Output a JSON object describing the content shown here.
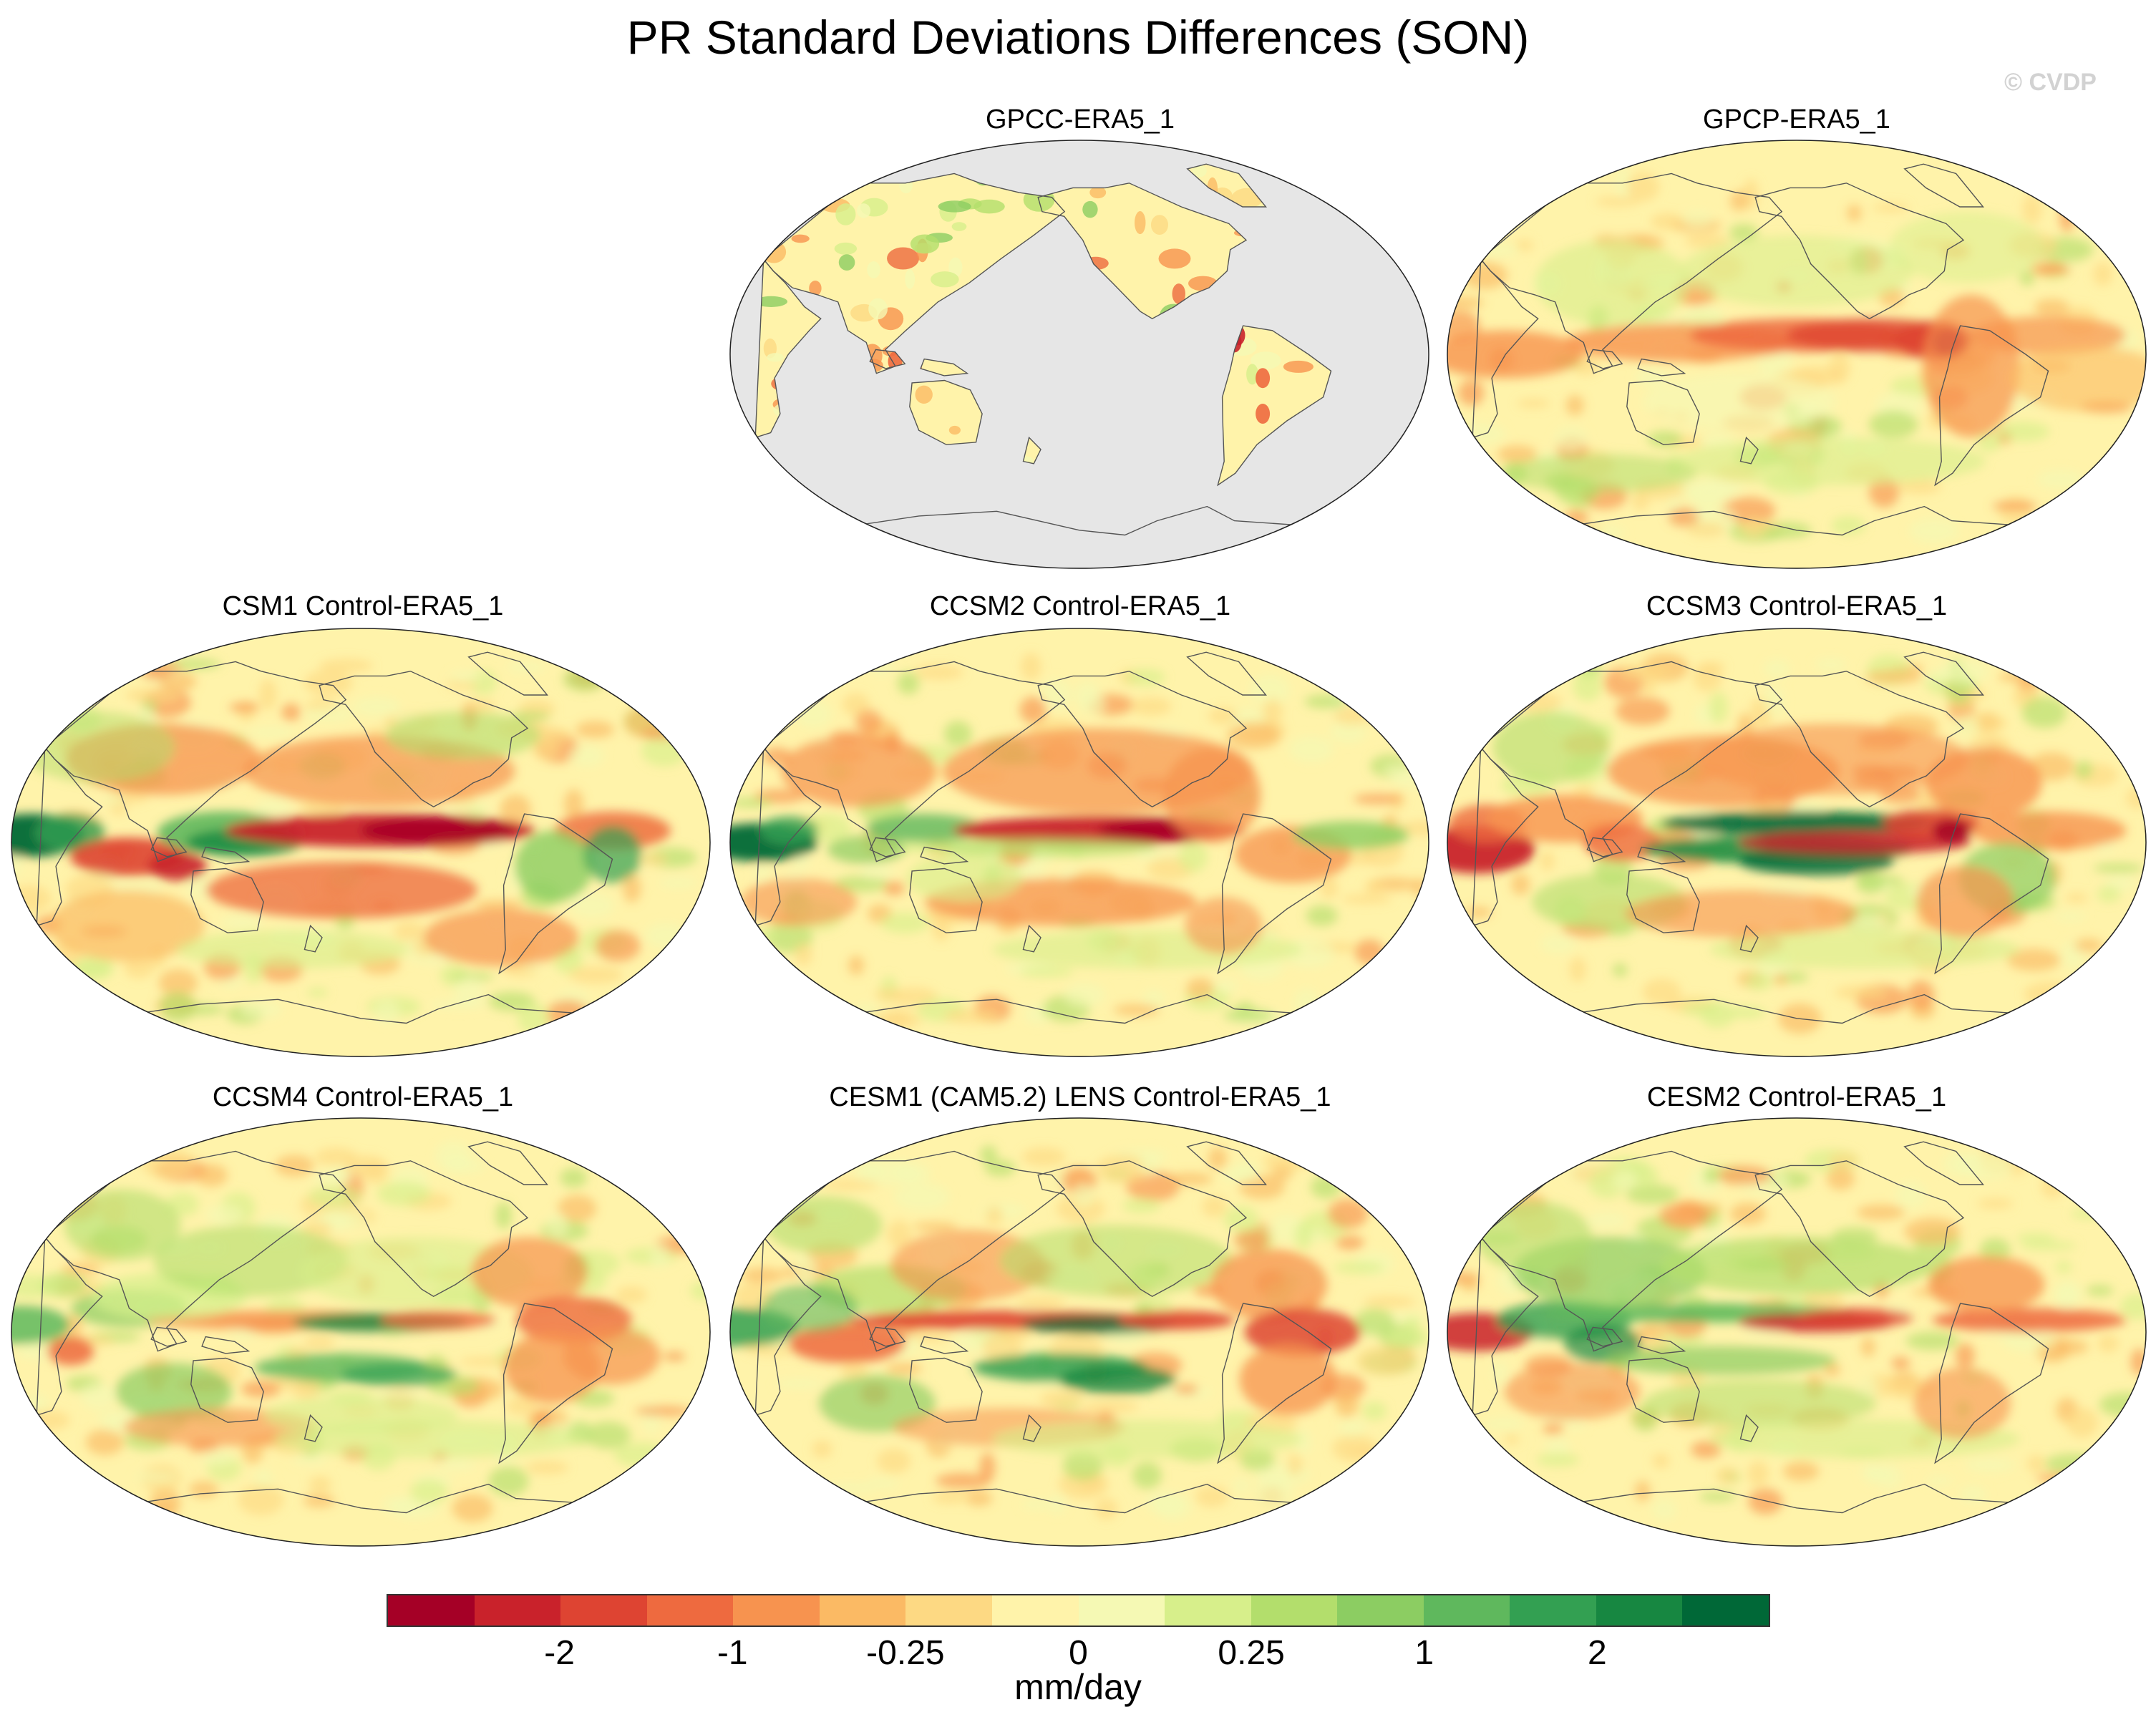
{
  "title": "PR Standard Deviations Differences (SON)",
  "watermark": "© CVDP",
  "panels": [
    {
      "title": "GPCC-ERA5_1",
      "coverage": "land-only",
      "pattern": "gpcc"
    },
    {
      "title": "GPCP-ERA5_1",
      "coverage": "global",
      "pattern": "gpcp"
    },
    {
      "title": "CSM1 Control-ERA5_1",
      "coverage": "global",
      "pattern": "csm1"
    },
    {
      "title": "CCSM2 Control-ERA5_1",
      "coverage": "global",
      "pattern": "ccsm2"
    },
    {
      "title": "CCSM3 Control-ERA5_1",
      "coverage": "global",
      "pattern": "ccsm3"
    },
    {
      "title": "CCSM4 Control-ERA5_1",
      "coverage": "global",
      "pattern": "ccsm4"
    },
    {
      "title": "CESM1 (CAM5.2) LENS Control-ERA5_1",
      "coverage": "global",
      "pattern": "cesm1"
    },
    {
      "title": "CESM2 Control-ERA5_1",
      "coverage": "global",
      "pattern": "cesm2"
    }
  ],
  "colorbar": {
    "units": "mm/day",
    "tick_labels": [
      "-2",
      "-1",
      "-0.25",
      "0",
      "0.25",
      "1",
      "2"
    ],
    "colors": [
      "#a50026",
      "#c9222b",
      "#de4432",
      "#ee6a3f",
      "#f7934f",
      "#fbba64",
      "#fdd983",
      "#fff3aa",
      "#f5f9b4",
      "#d7ef8b",
      "#b3de6c",
      "#8ccd62",
      "#5fb85d",
      "#33a052",
      "#178741",
      "#006837"
    ],
    "ocean_mask_color": "#e6e6e6",
    "coastline_color": "#555555"
  }
}
